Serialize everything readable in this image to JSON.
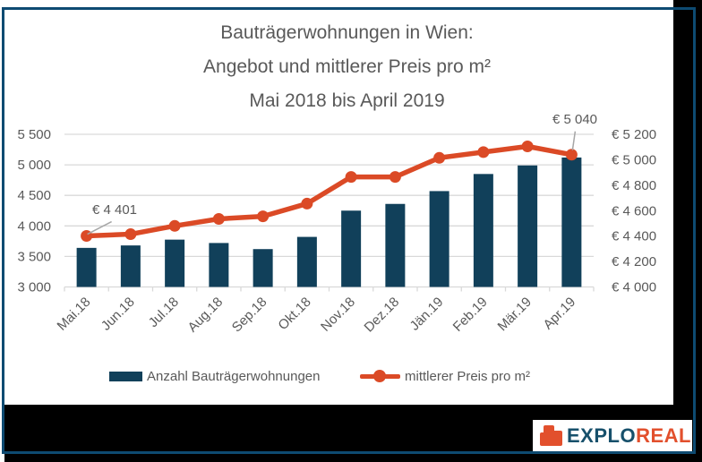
{
  "title": {
    "line1": "Bauträgerwohnungen in Wien:",
    "line2": "Angebot und mittlerer Preis pro m²",
    "line3": "Mai 2018 bis April 2019"
  },
  "chart_data": {
    "type": "bar+line combo",
    "categories": [
      "Mai.18",
      "Jun.18",
      "Jul.18",
      "Aug.18",
      "Sep.18",
      "Okt.18",
      "Nov.18",
      "Dez.18",
      "Jän.19",
      "Feb.19",
      "Mär.19",
      "Apr.19"
    ],
    "series": [
      {
        "name": "Anzahl Bauträgerwohnungen",
        "type": "bar",
        "axis": "left",
        "color": "#11405a",
        "values": [
          3640,
          3680,
          3775,
          3720,
          3620,
          3820,
          4250,
          4360,
          4570,
          4850,
          4990,
          5120
        ]
      },
      {
        "name": "mittlerer Preis pro m²",
        "type": "line",
        "axis": "right",
        "color": "#db4a26",
        "values": [
          4401,
          4415,
          4480,
          4535,
          4555,
          4655,
          4865,
          4865,
          5015,
          5060,
          5105,
          5040
        ]
      }
    ],
    "left_axis": {
      "min": 3000,
      "max": 5500,
      "step": 500,
      "tick_labels": [
        "3 000",
        "3 500",
        "4 000",
        "4 500",
        "5 000",
        "5 500"
      ]
    },
    "right_axis": {
      "min": 4000,
      "max": 5200,
      "step": 200,
      "tick_labels": [
        "€ 4 000",
        "€ 4 200",
        "€ 4 400",
        "€ 4 600",
        "€ 4 800",
        "€ 5 000",
        "€ 5 200"
      ]
    },
    "annotations": [
      {
        "text": "€ 4 401",
        "category": "Mai.18",
        "value": 4401
      },
      {
        "text": "€ 5 040",
        "category": "Apr.19",
        "value": 5040
      }
    ],
    "grid": true,
    "legend_position": "bottom"
  },
  "legend": {
    "items": [
      {
        "label": "Anzahl Bauträgerwohnungen",
        "swatch": "bar"
      },
      {
        "label": "mittlerer Preis pro m²",
        "swatch": "line-dot"
      }
    ]
  },
  "logo": {
    "prefix": "EXPLO",
    "suffix": "REAL",
    "icon": "building-blocks-icon"
  },
  "colors": {
    "bar": "#11405a",
    "line": "#db4a26",
    "frame_border": "#0e4b72",
    "text_gray": "#595959",
    "gridline": "#d9d9d9",
    "leader_line": "#a6a6a6",
    "band_black": "#000000",
    "logo_blue": "#17506b",
    "logo_orange": "#e2502d"
  }
}
